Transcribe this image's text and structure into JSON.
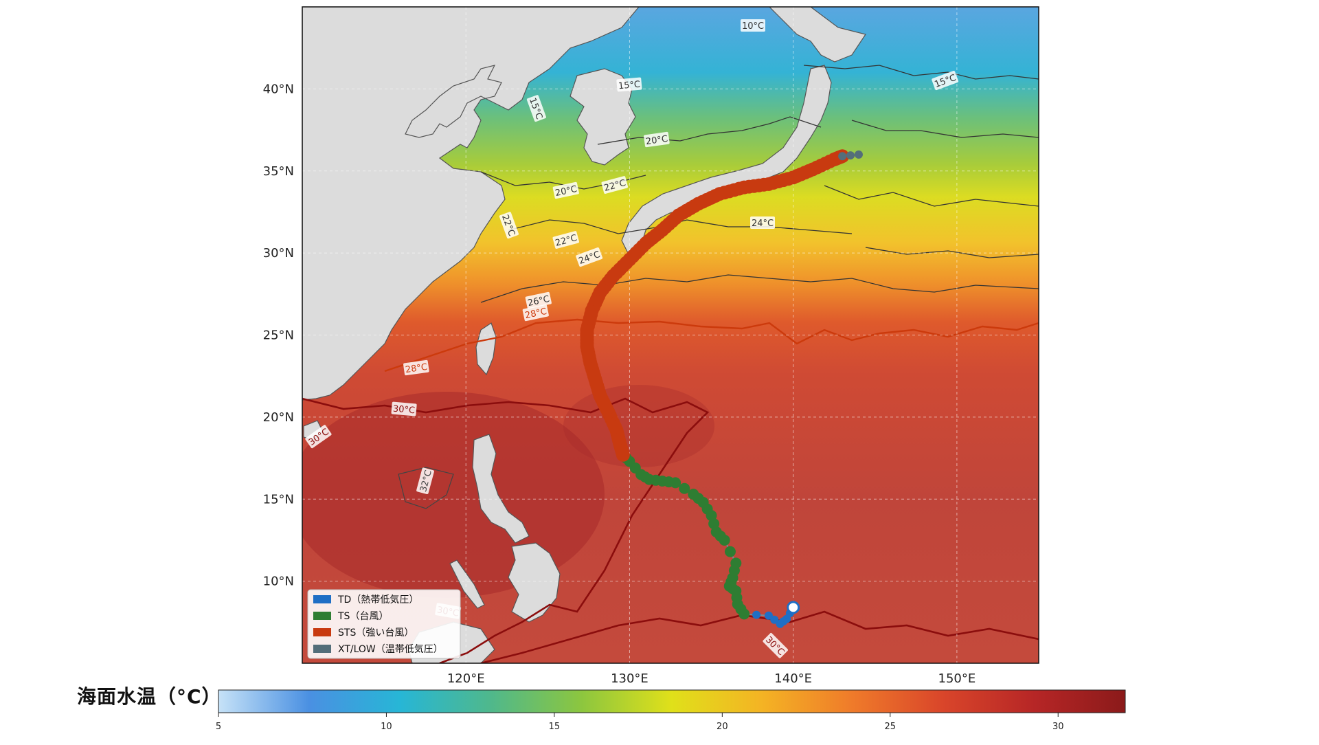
{
  "map": {
    "type": "sea-surface-temperature-track-map",
    "lon_range": [
      110,
      155
    ],
    "lat_range": [
      5,
      45
    ],
    "lat_ticks": [
      "10°N",
      "15°N",
      "20°N",
      "25°N",
      "30°N",
      "35°N",
      "40°N"
    ],
    "lon_ticks": [
      "120°E",
      "130°E",
      "140°E",
      "150°E"
    ],
    "grid": true,
    "land_color": "#d9d9d9"
  },
  "isotherm_labels": [
    "10°C",
    "15°C",
    "15°C",
    "15°C",
    "20°C",
    "20°C",
    "22°C",
    "22°C",
    "22°C",
    "24°C",
    "24°C",
    "26°C",
    "28°C",
    "28°C",
    "30°C",
    "30°C",
    "30°C",
    "30°C",
    "32°C"
  ],
  "legend": {
    "position": "lower-left",
    "items": [
      {
        "label": "TD（熱帯低気圧）",
        "color": "#1f6fc5"
      },
      {
        "label": "TS（台風）",
        "color": "#2e7d32"
      },
      {
        "label": "STS（強い台風）",
        "color": "#c83a10"
      },
      {
        "label": "XT/LOW（温帯低気圧）",
        "color": "#546e7a"
      }
    ]
  },
  "track": {
    "start_marker": {
      "lon": 140.0,
      "lat": 8.4
    },
    "segments": [
      {
        "category": "TD",
        "color": "#1f6fc5",
        "points": [
          [
            140.0,
            8.4
          ],
          [
            139.6,
            7.7
          ],
          [
            139.2,
            7.4
          ],
          [
            138.5,
            7.9
          ],
          [
            137.0,
            8.0
          ]
        ]
      },
      {
        "category": "TS",
        "color": "#2e7d32",
        "points": [
          [
            137.0,
            8.0
          ],
          [
            136.6,
            8.6
          ],
          [
            136.5,
            9.4
          ],
          [
            136.1,
            9.7
          ],
          [
            136.3,
            10.2
          ],
          [
            136.5,
            11.1
          ],
          [
            135.8,
            12.5
          ],
          [
            135.3,
            13.0
          ],
          [
            135.0,
            14.0
          ],
          [
            134.5,
            14.8
          ],
          [
            133.9,
            15.3
          ],
          [
            132.8,
            16.0
          ],
          [
            132.0,
            16.1
          ],
          [
            131.2,
            16.2
          ],
          [
            130.7,
            16.5
          ],
          [
            130.0,
            17.3
          ],
          [
            129.6,
            17.7
          ]
        ]
      },
      {
        "category": "STS",
        "color": "#c83a10",
        "points": [
          [
            129.6,
            17.7
          ],
          [
            129.4,
            18.4
          ],
          [
            129.2,
            19.2
          ],
          [
            128.7,
            20.3
          ],
          [
            128.2,
            21.3
          ],
          [
            127.9,
            22.3
          ],
          [
            127.6,
            23.3
          ],
          [
            127.4,
            24.3
          ],
          [
            127.4,
            25.3
          ],
          [
            127.7,
            26.5
          ],
          [
            128.2,
            27.6
          ],
          [
            129.0,
            28.6
          ],
          [
            130.0,
            29.6
          ],
          [
            131.0,
            30.6
          ],
          [
            132.0,
            31.4
          ],
          [
            133.0,
            32.3
          ],
          [
            134.2,
            33.0
          ],
          [
            135.5,
            33.6
          ],
          [
            137.0,
            34.0
          ],
          [
            138.5,
            34.2
          ],
          [
            140.0,
            34.6
          ],
          [
            141.2,
            35.1
          ],
          [
            142.5,
            35.7
          ],
          [
            143.0,
            35.9
          ]
        ]
      },
      {
        "category": "XT/LOW",
        "color": "#546e7a",
        "points": [
          [
            143.0,
            35.9
          ],
          [
            144.0,
            36.0
          ]
        ]
      }
    ]
  },
  "colorbar": {
    "title": "海面水温（°C）",
    "min": 5,
    "max": 32,
    "ticks": [
      "5",
      "10",
      "15",
      "20",
      "25",
      "30"
    ],
    "colors": [
      "#c6e2f7",
      "#4a90e2",
      "#27b6d6",
      "#4fb88c",
      "#8cc63f",
      "#e0e01a",
      "#f4b324",
      "#ef7a2a",
      "#d9452a",
      "#b62626",
      "#8b1a1a"
    ]
  }
}
